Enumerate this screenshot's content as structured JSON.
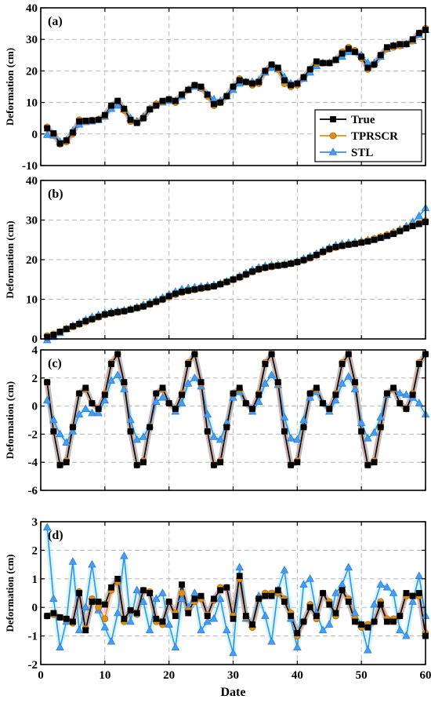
{
  "chart_data": [
    {
      "type": "line",
      "panel_label": "(a)",
      "ylabel": "Deformation (cm)",
      "xlabel": "",
      "xlim": [
        0,
        60
      ],
      "ylim": [
        -10,
        40
      ],
      "yticks": [
        -10,
        0,
        10,
        20,
        30,
        40
      ],
      "xticks": [
        0,
        10,
        20,
        30,
        40,
        50,
        60
      ],
      "grid": true,
      "legend": "right",
      "x": [
        1,
        2,
        3,
        4,
        5,
        6,
        7,
        8,
        9,
        10,
        11,
        12,
        13,
        14,
        15,
        16,
        17,
        18,
        19,
        20,
        21,
        22,
        23,
        24,
        25,
        26,
        27,
        28,
        29,
        30,
        31,
        32,
        33,
        34,
        35,
        36,
        37,
        38,
        39,
        40,
        41,
        42,
        43,
        44,
        45,
        46,
        47,
        48,
        49,
        50,
        51,
        52,
        53,
        54,
        55,
        56,
        57,
        58,
        59,
        60
      ],
      "series": [
        {
          "name": "True",
          "values": [
            1.8,
            0.2,
            -3.0,
            -2.0,
            0.5,
            4.0,
            4.2,
            4.3,
            4.5,
            6.0,
            9.0,
            10.5,
            8.0,
            4.5,
            3.5,
            5.0,
            7.8,
            9.0,
            10.5,
            11.0,
            10.5,
            12.5,
            14.0,
            15.5,
            15.0,
            12.5,
            9.5,
            10.0,
            12.0,
            15.0,
            17.0,
            16.5,
            16.0,
            16.5,
            20.0,
            22.0,
            21.0,
            17.0,
            15.5,
            16.0,
            18.0,
            20.5,
            23.0,
            22.5,
            22.5,
            23.5,
            25.5,
            27.0,
            26.0,
            24.5,
            21.0,
            22.0,
            25.0,
            27.5,
            28.0,
            28.5,
            28.5,
            30.0,
            32.0,
            33.0
          ]
        },
        {
          "name": "TPRSCR",
          "values": [
            2.2,
            0.0,
            -3.2,
            -2.5,
            0.0,
            4.5,
            4.0,
            4.4,
            4.6,
            5.8,
            9.0,
            10.5,
            7.5,
            4.0,
            3.8,
            5.2,
            8.0,
            9.5,
            10.2,
            11.0,
            10.0,
            12.5,
            14.0,
            15.5,
            14.5,
            12.0,
            9.0,
            10.0,
            12.0,
            15.0,
            17.5,
            16.5,
            15.5,
            16.0,
            20.0,
            22.0,
            20.5,
            16.0,
            15.0,
            15.5,
            18.0,
            20.5,
            22.5,
            22.5,
            22.5,
            23.5,
            26.0,
            27.5,
            26.5,
            24.0,
            20.5,
            22.0,
            25.0,
            27.0,
            27.5,
            28.0,
            28.5,
            29.5,
            32.0,
            33.5
          ]
        },
        {
          "name": "STL",
          "values": [
            -0.3,
            -0.5,
            -2.5,
            -2.0,
            1.0,
            3.0,
            3.8,
            4.0,
            4.5,
            5.5,
            8.0,
            9.0,
            7.8,
            5.0,
            4.0,
            5.5,
            8.0,
            9.5,
            10.0,
            10.5,
            10.5,
            12.0,
            14.0,
            15.0,
            14.5,
            12.5,
            11.0,
            10.5,
            12.0,
            14.0,
            16.0,
            16.5,
            16.5,
            17.0,
            19.5,
            21.0,
            20.5,
            18.0,
            16.0,
            16.0,
            17.5,
            19.5,
            21.5,
            22.5,
            22.5,
            23.5,
            24.5,
            26.0,
            26.0,
            25.0,
            22.5,
            22.5,
            24.5,
            27.0,
            28.0,
            28.0,
            28.5,
            29.5,
            31.5,
            33.0
          ]
        }
      ]
    },
    {
      "type": "line",
      "panel_label": "(b)",
      "ylabel": "Deformation (cm)",
      "xlabel": "",
      "xlim": [
        0,
        60
      ],
      "ylim": [
        0,
        40
      ],
      "yticks": [
        0,
        10,
        20,
        30,
        40
      ],
      "xticks": [
        0,
        10,
        20,
        30,
        40,
        50,
        60
      ],
      "grid": true,
      "x": [
        1,
        2,
        3,
        4,
        5,
        6,
        7,
        8,
        9,
        10,
        11,
        12,
        13,
        14,
        15,
        16,
        17,
        18,
        19,
        20,
        21,
        22,
        23,
        24,
        25,
        26,
        27,
        28,
        29,
        30,
        31,
        32,
        33,
        34,
        35,
        36,
        37,
        38,
        39,
        40,
        41,
        42,
        43,
        44,
        45,
        46,
        47,
        48,
        49,
        50,
        51,
        52,
        53,
        54,
        55,
        56,
        57,
        58,
        59,
        60
      ],
      "series": [
        {
          "name": "True",
          "values": [
            0.5,
            1.0,
            1.8,
            2.5,
            3.2,
            3.8,
            4.5,
            5.0,
            5.6,
            6.2,
            6.5,
            6.8,
            7.0,
            7.4,
            7.8,
            8.2,
            8.8,
            9.4,
            10.0,
            10.8,
            11.4,
            11.9,
            12.2,
            12.5,
            12.8,
            13.0,
            13.3,
            13.8,
            14.4,
            15.0,
            15.6,
            16.3,
            17.0,
            17.6,
            18.0,
            18.3,
            18.5,
            18.7,
            19.0,
            19.4,
            19.9,
            20.5,
            21.2,
            22.0,
            22.7,
            23.2,
            23.5,
            23.8,
            24.0,
            24.3,
            24.6,
            25.0,
            25.5,
            26.0,
            26.5,
            27.2,
            27.9,
            28.5,
            29.0,
            29.5
          ]
        },
        {
          "name": "TPRSCR",
          "values": [
            0.8,
            1.2,
            1.8,
            2.5,
            3.1,
            3.7,
            4.3,
            4.9,
            5.5,
            6.1,
            6.4,
            6.7,
            7.0,
            7.4,
            7.8,
            8.2,
            8.7,
            9.3,
            9.9,
            10.6,
            11.2,
            11.7,
            12.1,
            12.4,
            12.7,
            13.0,
            13.3,
            13.8,
            14.3,
            14.9,
            15.5,
            16.2,
            16.9,
            17.5,
            17.9,
            18.2,
            18.5,
            18.7,
            19.0,
            19.3,
            19.8,
            20.4,
            21.1,
            21.9,
            22.6,
            23.1,
            23.5,
            23.8,
            24.1,
            24.4,
            24.8,
            25.3,
            25.8,
            26.3,
            26.8,
            27.4,
            28.0,
            28.6,
            29.2,
            29.8
          ]
        },
        {
          "name": "STL",
          "values": [
            -0.3,
            0.5,
            1.5,
            2.5,
            3.3,
            4.0,
            4.8,
            5.5,
            6.0,
            6.5,
            6.8,
            7.0,
            7.2,
            7.5,
            8.0,
            8.6,
            9.2,
            9.8,
            10.4,
            11.2,
            11.9,
            12.5,
            12.8,
            13.0,
            13.2,
            13.4,
            13.6,
            14.0,
            14.5,
            15.1,
            15.8,
            16.6,
            17.4,
            18.0,
            18.4,
            18.6,
            18.7,
            18.8,
            19.1,
            19.6,
            20.2,
            20.8,
            21.5,
            22.3,
            23.0,
            23.6,
            24.0,
            24.2,
            24.4,
            24.6,
            24.9,
            25.2,
            25.6,
            26.2,
            26.9,
            27.6,
            28.4,
            29.5,
            31.0,
            33.0
          ]
        }
      ]
    },
    {
      "type": "line",
      "panel_label": "(c)",
      "ylabel": "Deformation (cm)",
      "xlabel": "",
      "xlim": [
        0,
        60
      ],
      "ylim": [
        -6,
        4
      ],
      "yticks": [
        -6,
        -4,
        -2,
        0,
        2,
        4
      ],
      "xticks": [
        0,
        10,
        20,
        30,
        40,
        50,
        60
      ],
      "grid": true,
      "x": [
        1,
        2,
        3,
        4,
        5,
        6,
        7,
        8,
        9,
        10,
        11,
        12,
        13,
        14,
        15,
        16,
        17,
        18,
        19,
        20,
        21,
        22,
        23,
        24,
        25,
        26,
        27,
        28,
        29,
        30,
        31,
        32,
        33,
        34,
        35,
        36,
        37,
        38,
        39,
        40,
        41,
        42,
        43,
        44,
        45,
        46,
        47,
        48,
        49,
        50,
        51,
        52,
        53,
        54,
        55,
        56,
        57,
        58,
        59,
        60
      ],
      "series": [
        {
          "name": "True",
          "values": [
            1.7,
            -1.8,
            -4.2,
            -4.0,
            -1.5,
            0.9,
            1.3,
            0.2,
            -0.2,
            0.8,
            3.0,
            3.7,
            1.7,
            -1.8,
            -4.2,
            -4.0,
            -1.5,
            0.9,
            1.3,
            0.2,
            -0.2,
            0.8,
            3.0,
            3.7,
            1.7,
            -1.8,
            -4.2,
            -4.0,
            -1.5,
            0.9,
            1.3,
            0.2,
            -0.2,
            0.8,
            3.0,
            3.7,
            1.7,
            -1.8,
            -4.2,
            -4.0,
            -1.5,
            0.9,
            1.3,
            0.2,
            -0.2,
            0.8,
            3.0,
            3.7,
            1.7,
            -1.8,
            -4.2,
            -4.0,
            -1.5,
            0.9,
            1.3,
            0.2,
            -0.2,
            0.8,
            3.0,
            3.7
          ]
        },
        {
          "name": "TPRSCR",
          "values": [
            1.7,
            -1.8,
            -4.2,
            -3.9,
            -1.5,
            0.9,
            1.2,
            0.2,
            -0.2,
            0.9,
            3.1,
            3.7,
            1.6,
            -1.8,
            -4.2,
            -3.9,
            -1.5,
            0.9,
            1.2,
            0.2,
            -0.2,
            0.9,
            3.1,
            3.7,
            1.6,
            -1.8,
            -4.2,
            -3.9,
            -1.5,
            0.9,
            1.2,
            0.2,
            -0.2,
            0.9,
            3.1,
            3.7,
            1.6,
            -1.8,
            -4.2,
            -3.9,
            -1.5,
            0.9,
            1.2,
            0.2,
            -0.2,
            0.9,
            3.1,
            3.7,
            1.6,
            -1.8,
            -4.2,
            -3.9,
            -1.5,
            0.9,
            1.2,
            0.2,
            -0.2,
            0.9,
            3.1,
            3.7
          ]
        },
        {
          "name": "STL",
          "values": [
            0.4,
            -1.0,
            -2.0,
            -2.6,
            -1.8,
            -0.6,
            -0.2,
            -0.5,
            -0.5,
            0.4,
            1.8,
            2.2,
            1.2,
            -1.0,
            -2.4,
            -2.2,
            -1.4,
            0.3,
            0.6,
            0.3,
            -0.4,
            0.2,
            1.6,
            2.0,
            1.4,
            -0.6,
            -2.2,
            -2.4,
            -1.2,
            0.6,
            1.0,
            0.2,
            -0.4,
            0.3,
            1.6,
            2.2,
            1.5,
            -0.8,
            -2.3,
            -2.4,
            -1.0,
            0.6,
            1.0,
            0.2,
            -0.4,
            0.4,
            1.6,
            2.1,
            1.2,
            -1.2,
            -2.3,
            -1.9,
            -0.8,
            0.8,
            1.2,
            0.9,
            0.8,
            0.6,
            0.2,
            -0.6
          ]
        }
      ]
    },
    {
      "type": "line",
      "panel_label": "(d)",
      "ylabel": "Deformation (cm)",
      "xlabel": "Date",
      "xlim": [
        0,
        60
      ],
      "ylim": [
        -2,
        3
      ],
      "yticks": [
        -2,
        -1,
        0,
        1,
        2,
        3
      ],
      "xticks": [
        0,
        10,
        20,
        30,
        40,
        50,
        60
      ],
      "grid": true,
      "x": [
        1,
        2,
        3,
        4,
        5,
        6,
        7,
        8,
        9,
        10,
        11,
        12,
        13,
        14,
        15,
        16,
        17,
        18,
        19,
        20,
        21,
        22,
        23,
        24,
        25,
        26,
        27,
        28,
        29,
        30,
        31,
        32,
        33,
        34,
        35,
        36,
        37,
        38,
        39,
        40,
        41,
        42,
        43,
        44,
        45,
        46,
        47,
        48,
        49,
        50,
        51,
        52,
        53,
        54,
        55,
        56,
        57,
        58,
        59,
        60
      ],
      "series": [
        {
          "name": "True",
          "values": [
            -0.3,
            -0.2,
            -0.35,
            -0.4,
            -0.5,
            0.5,
            -0.8,
            0.2,
            0.2,
            0.1,
            0.7,
            1.0,
            -0.4,
            -0.1,
            -0.2,
            0.6,
            0.5,
            -0.4,
            -0.5,
            0.2,
            -0.3,
            0.8,
            -0.2,
            0.3,
            0.4,
            -0.3,
            0.3,
            0.6,
            0.7,
            -0.4,
            1.1,
            -0.3,
            -0.6,
            0.3,
            0.4,
            0.4,
            0.6,
            0.2,
            -0.3,
            -0.9,
            -0.5,
            0.0,
            -0.3,
            0.5,
            0.1,
            -0.2,
            0.6,
            0.2,
            -0.5,
            -0.6,
            -0.7,
            -0.5,
            0.1,
            -0.5,
            -0.5,
            -0.3,
            0.5,
            0.4,
            0.5,
            -1.0
          ]
        },
        {
          "name": "TPRSCR",
          "values": [
            -0.3,
            -0.25,
            -0.35,
            -0.4,
            -0.55,
            0.55,
            -0.75,
            0.3,
            0.0,
            -0.4,
            0.6,
            0.9,
            -0.5,
            -0.1,
            -0.25,
            0.6,
            0.55,
            -0.5,
            -0.6,
            0.2,
            -0.2,
            0.5,
            -0.1,
            0.2,
            0.3,
            -0.25,
            0.25,
            0.7,
            0.7,
            -0.3,
            1.0,
            -0.35,
            -0.7,
            0.3,
            0.5,
            0.5,
            0.5,
            0.3,
            -0.2,
            -1.0,
            -0.5,
            0.1,
            -0.4,
            0.5,
            0.2,
            -0.3,
            0.6,
            0.3,
            -0.4,
            -0.7,
            -0.6,
            -0.5,
            0.2,
            -0.4,
            -0.4,
            -0.3,
            0.4,
            0.4,
            0.4,
            -0.9
          ]
        },
        {
          "name": "STL",
          "values": [
            2.8,
            0.3,
            -1.4,
            -0.5,
            1.6,
            -0.8,
            0.0,
            1.5,
            -0.1,
            -0.7,
            -1.2,
            -0.2,
            1.8,
            -0.5,
            0.6,
            0.2,
            -0.8,
            0.3,
            0.5,
            -0.6,
            -1.4,
            0.3,
            0.0,
            0.5,
            -0.8,
            -0.5,
            -0.4,
            0.3,
            -0.8,
            -1.6,
            1.4,
            -0.4,
            -0.6,
            0.4,
            -0.3,
            -1.2,
            0.6,
            1.3,
            -0.4,
            -1.4,
            0.8,
            1.0,
            -0.2,
            -0.8,
            -0.6,
            0.5,
            0.8,
            1.4,
            -0.2,
            -0.6,
            -1.5,
            0.1,
            0.8,
            0.7,
            0.5,
            -0.8,
            -1.0,
            0.2,
            1.1,
            -0.3
          ]
        }
      ]
    }
  ],
  "legend": {
    "items": [
      {
        "name": "True",
        "color": "#000000",
        "marker": "square"
      },
      {
        "name": "TPRSCR",
        "color": "#D9901C",
        "marker": "circle"
      },
      {
        "name": "STL",
        "color": "#3A8FE8",
        "marker": "triangle"
      }
    ]
  },
  "colors": {
    "True": "#000000",
    "TPRSCR": "#D9901C",
    "STL": "#3A8FE8"
  }
}
